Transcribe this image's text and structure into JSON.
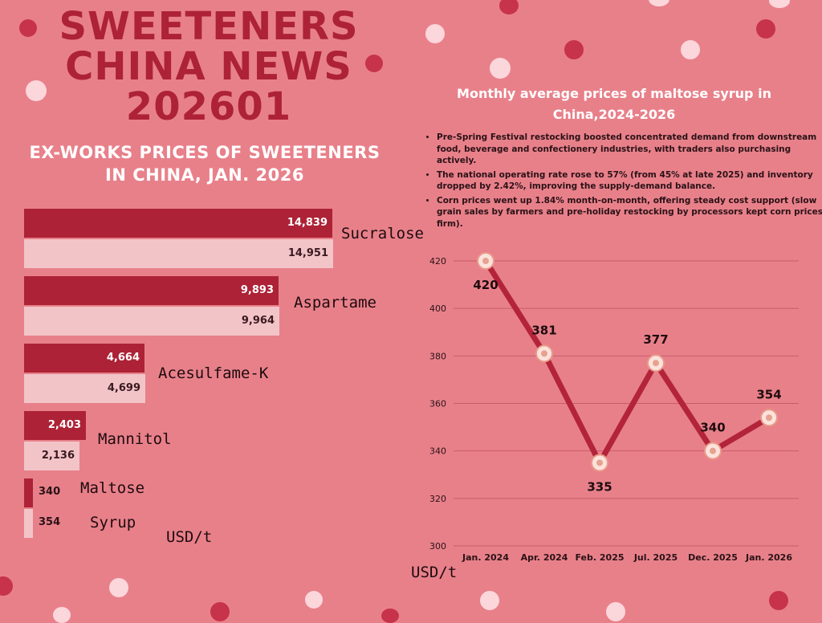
{
  "header": {
    "title_line1": "SWEETENERS",
    "title_line2": "CHINA NEWS",
    "title_line3": "202601"
  },
  "bar_section": {
    "title_line1": "EX-WORKS PRICES OF SWEETENERS",
    "title_line2": "IN CHINA, JAN. 2026",
    "unit": "USD/t"
  },
  "line_section": {
    "title_line1": "Monthly average prices of maltose syrup in",
    "title_line2": "China,2024-2026",
    "unit": "USD/t",
    "notes": [
      "Pre-Spring Festival restocking boosted concentrated demand from downstream food, beverage and confectionery industries, with traders also purchasing actively.",
      "The national operating rate rose to 57% (from 45% at late 2025) and inventory dropped by 2.42%, improving the supply-demand balance.",
      "Corn prices went up 1.84% month-on-month, offering steady cost support (slow grain sales by farmers and pre-holiday restocking by processors kept corn prices firm)."
    ]
  },
  "chart_data": [
    {
      "type": "bar",
      "orientation": "horizontal",
      "title": "EX-WORKS PRICES OF SWEETENERS IN CHINA, JAN. 2026",
      "categories": [
        "Sucralose",
        "Aspartame",
        "Acesulfame-K",
        "Mannitol",
        "Maltose Syrup"
      ],
      "category_labels": [
        "Sucralose",
        "Aspartame",
        "Acesulfame-K",
        "Mannitol",
        "Maltose",
        "Syrup"
      ],
      "series": [
        {
          "name": "dark",
          "color": "#ad2236",
          "values": [
            14839,
            9893,
            4664,
            2403,
            340
          ]
        },
        {
          "name": "light",
          "color": "#f2c4c8",
          "values": [
            14951,
            9964,
            4699,
            2136,
            354
          ]
        }
      ],
      "value_labels": [
        [
          "14,839",
          "9,893",
          "4,664",
          "2,403",
          "340"
        ],
        [
          "14,951",
          "9,964",
          "4,699",
          "2,136",
          "354"
        ]
      ],
      "unit": "USD/t"
    },
    {
      "type": "line",
      "title": "Monthly average prices of maltose syrup in China,2024-2026",
      "categories": [
        "Jan. 2024",
        "Apr. 2024",
        "Feb. 2025",
        "Jul. 2025",
        "Dec. 2025",
        "Jan. 2026"
      ],
      "values": [
        420,
        381,
        335,
        377,
        340,
        354
      ],
      "ylim": [
        300,
        420
      ],
      "yticks": [
        300,
        320,
        340,
        360,
        380,
        400,
        420
      ],
      "ylabel": "USD/t",
      "line_color": "#b3243a",
      "grid": true
    }
  ]
}
